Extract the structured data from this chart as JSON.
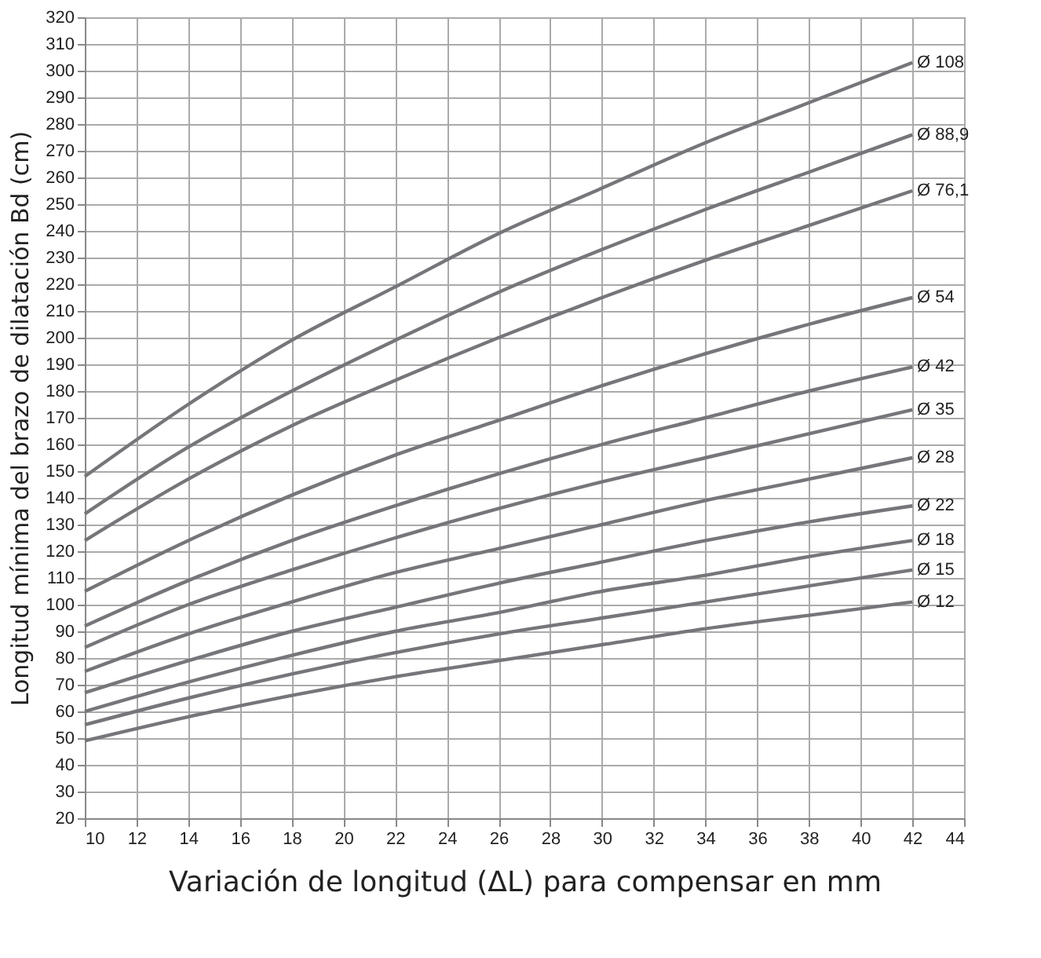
{
  "chart_data": {
    "type": "line",
    "xlabel": "Variación de longitud (ΔL) para compensar en mm",
    "ylabel": "Longitud mínima del brazo de dilatación Bd (cm)",
    "x": [
      10,
      14,
      18,
      22,
      26,
      30,
      34,
      38,
      42
    ],
    "xlim": [
      10,
      44
    ],
    "xticks": [
      10,
      12,
      14,
      16,
      18,
      20,
      22,
      24,
      26,
      28,
      30,
      32,
      34,
      36,
      38,
      40,
      42,
      44
    ],
    "ylim": [
      20,
      320
    ],
    "yticks": [
      20,
      30,
      40,
      50,
      60,
      70,
      80,
      90,
      100,
      110,
      120,
      130,
      140,
      150,
      160,
      170,
      180,
      190,
      200,
      210,
      220,
      230,
      240,
      250,
      260,
      270,
      280,
      290,
      300,
      310,
      320
    ],
    "grid": true,
    "legend": false,
    "marker": "none",
    "line_style": "solid",
    "series": [
      {
        "name": "Ø 108",
        "color": "#76767a",
        "values": [
          148,
          175,
          199,
          219,
          239,
          256,
          273,
          288,
          303
        ]
      },
      {
        "name": "Ø 88,9",
        "color": "#76767a",
        "values": [
          134,
          159,
          180,
          199,
          217,
          233,
          248,
          262,
          276
        ]
      },
      {
        "name": "Ø 76,1",
        "color": "#76767a",
        "values": [
          124,
          147,
          167,
          184,
          200,
          215,
          229,
          242,
          255
        ]
      },
      {
        "name": "Ø 54",
        "color": "#76767a",
        "values": [
          105,
          124,
          141,
          156,
          169,
          182,
          194,
          205,
          215
        ]
      },
      {
        "name": "Ø 42",
        "color": "#76767a",
        "values": [
          92,
          109,
          124,
          137,
          149,
          160,
          170,
          180,
          189
        ]
      },
      {
        "name": "Ø 35",
        "color": "#76767a",
        "values": [
          84,
          100,
          113,
          125,
          136,
          146,
          155,
          164,
          173
        ]
      },
      {
        "name": "Ø 28",
        "color": "#76767a",
        "values": [
          75,
          89,
          101,
          112,
          121,
          130,
          139,
          147,
          155
        ]
      },
      {
        "name": "Ø 22",
        "color": "#76767a",
        "values": [
          67,
          79,
          90,
          99,
          108,
          116,
          124,
          131,
          137
        ]
      },
      {
        "name": "Ø 18",
        "color": "#76767a",
        "values": [
          60,
          71,
          81,
          90,
          97,
          105,
          111,
          118,
          124
        ]
      },
      {
        "name": "Ø 15",
        "color": "#76767a",
        "values": [
          55,
          65,
          74,
          82,
          89,
          95,
          101,
          107,
          113
        ]
      },
      {
        "name": "Ø 12",
        "color": "#76767a",
        "values": [
          49,
          58,
          66,
          73,
          79,
          85,
          91,
          96,
          101
        ]
      }
    ]
  }
}
